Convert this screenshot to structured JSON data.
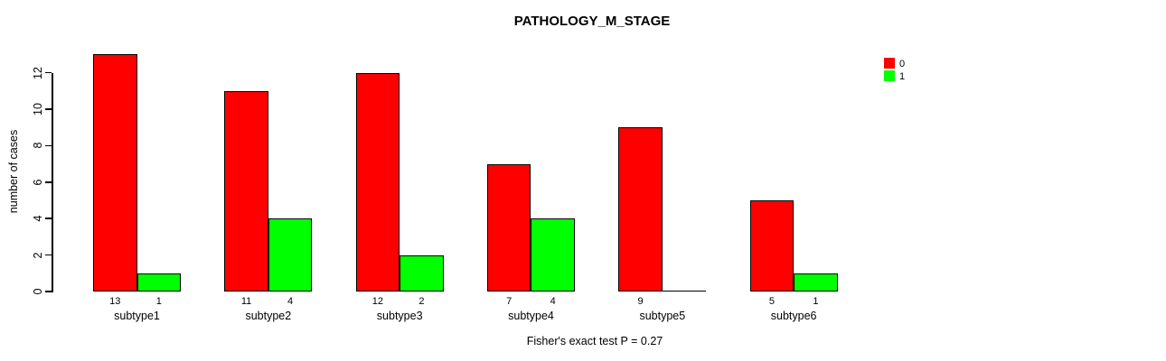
{
  "chart_data": {
    "type": "bar",
    "title": "PATHOLOGY_M_STAGE",
    "categories": [
      "subtype1",
      "subtype2",
      "subtype3",
      "subtype4",
      "subtype5",
      "subtype6"
    ],
    "series": [
      {
        "name": "0",
        "color": "#ff0000",
        "values": [
          13,
          11,
          12,
          7,
          9,
          5
        ]
      },
      {
        "name": "1",
        "color": "#00ff00",
        "values": [
          1,
          4,
          2,
          4,
          0,
          1
        ]
      }
    ],
    "bar_labels": [
      [
        "13",
        "1"
      ],
      [
        "11",
        "4"
      ],
      [
        "12",
        "2"
      ],
      [
        "7",
        "4"
      ],
      [
        "9",
        ""
      ],
      [
        "5",
        "1"
      ]
    ],
    "xlabel": "",
    "ylabel": "number of cases",
    "yticks": [
      0,
      2,
      4,
      6,
      8,
      10,
      12
    ],
    "ylim": [
      0,
      12
    ],
    "grid": false,
    "legend_position": "top-right",
    "annotation": "Fisher's exact test P = 0.27"
  },
  "colors": {
    "bar_border": "#000000",
    "axis": "#000000",
    "background": "#ffffff"
  }
}
